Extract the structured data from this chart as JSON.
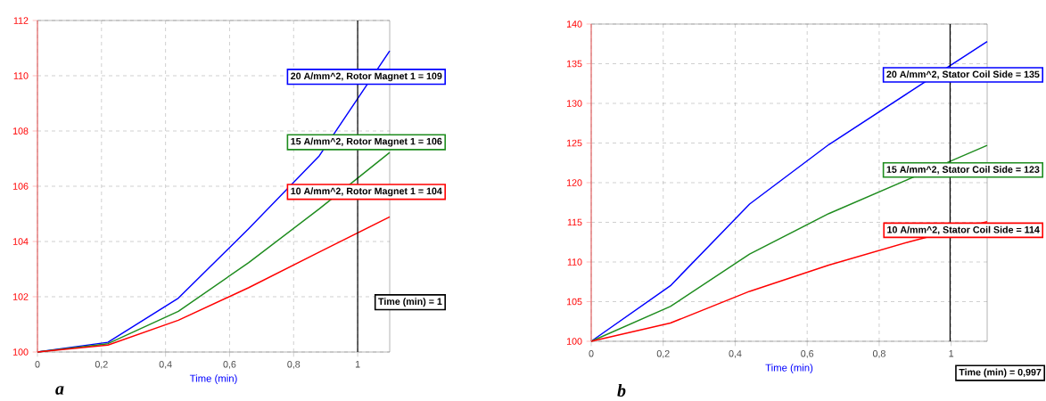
{
  "chart_data": [
    {
      "type": "line",
      "xlabel": "Time (min)",
      "xlim": [
        0,
        1.1
      ],
      "ylim": [
        100,
        112
      ],
      "xticks": [
        0,
        {
          "value": 0.2,
          "label": "0,2"
        },
        {
          "value": 0.4,
          "label": "0,4"
        },
        {
          "value": 0.6,
          "label": "0,6"
        },
        {
          "value": 0.8,
          "label": "0,8"
        },
        1
      ],
      "yticks": [
        100,
        102,
        104,
        106,
        108,
        110,
        112
      ],
      "grid": true,
      "x": [
        0,
        0.22,
        0.44,
        0.66,
        0.88,
        1.1
      ],
      "series": [
        {
          "color": "#0000ff",
          "values": [
            100,
            100.35,
            101.95,
            104.47,
            107.1,
            110.9
          ]
        },
        {
          "color": "#1e8c1e",
          "values": [
            100,
            100.3,
            101.47,
            103.24,
            105.18,
            107.22
          ]
        },
        {
          "color": "#ff0000",
          "values": [
            100,
            100.25,
            101.15,
            102.33,
            103.62,
            104.89
          ]
        }
      ],
      "ref_lines": [
        {
          "axis": "x",
          "value": 1,
          "label": "Time (min) = 1",
          "color": "#000000"
        }
      ],
      "annotations": [
        "20 A/mm^2, Rotor Magnet 1 = 109",
        "15 A/mm^2, Rotor Magnet 1 = 106",
        "10 A/mm^2, Rotor Magnet 1 = 104",
        "a"
      ]
    },
    {
      "type": "line",
      "xlabel": "Time (min)",
      "xlim": [
        0,
        1.1
      ],
      "ylim": [
        100,
        140
      ],
      "xticks": [
        0,
        {
          "value": 0.2,
          "label": "0,2"
        },
        {
          "value": 0.4,
          "label": "0,4"
        },
        {
          "value": 0.6,
          "label": "0,6"
        },
        {
          "value": 0.8,
          "label": "0,8"
        },
        1
      ],
      "yticks": [
        100,
        105,
        110,
        115,
        120,
        125,
        130,
        135,
        140
      ],
      "grid": true,
      "x": [
        0,
        0.22,
        0.44,
        0.66,
        0.88,
        1.1
      ],
      "series": [
        {
          "color": "#0000ff",
          "values": [
            100,
            107,
            117.3,
            124.8,
            131.3,
            137.8
          ]
        },
        {
          "color": "#1e8c1e",
          "values": [
            100,
            104.4,
            111,
            116.1,
            120.4,
            124.7
          ]
        },
        {
          "color": "#ff0000",
          "values": [
            100,
            102.3,
            106.3,
            109.6,
            112.5,
            115.1
          ]
        }
      ],
      "ref_lines": [
        {
          "axis": "x",
          "value": 0.997,
          "label": "Time (min) = 0,997",
          "color": "#000000"
        }
      ],
      "annotations": [
        "20 A/mm^2, Stator Coil Side = 135",
        "15 A/mm^2, Stator Coil Side = 123",
        "10 A/mm^2, Stator Coil Side = 114",
        "b"
      ]
    }
  ]
}
